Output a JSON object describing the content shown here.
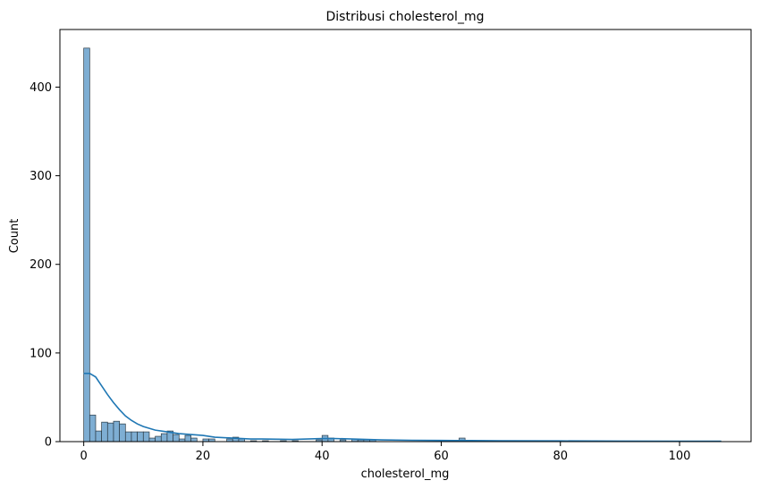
{
  "colors": {
    "bar_fill": "#7eaed3",
    "bar_edge": "#2b3a44",
    "kde_line": "#1f77b4",
    "axis": "#000000",
    "background": "#ffffff"
  },
  "chart_data": {
    "type": "bar",
    "subtype": "histogram_with_kde",
    "title": "Distribusi cholesterol_mg",
    "xlabel": "cholesterol_mg",
    "ylabel": "Count",
    "xlim": [
      -4,
      112
    ],
    "ylim": [
      0,
      465
    ],
    "xticks": [
      0,
      20,
      40,
      60,
      80,
      100
    ],
    "yticks": [
      0,
      100,
      200,
      300,
      400
    ],
    "grid": false,
    "legend": "none",
    "bin_width": 1.0,
    "bins": [
      {
        "x0": 0,
        "count": 444
      },
      {
        "x0": 1,
        "count": 30
      },
      {
        "x0": 2,
        "count": 12
      },
      {
        "x0": 3,
        "count": 22
      },
      {
        "x0": 4,
        "count": 21
      },
      {
        "x0": 5,
        "count": 23
      },
      {
        "x0": 6,
        "count": 20
      },
      {
        "x0": 7,
        "count": 11
      },
      {
        "x0": 8,
        "count": 11
      },
      {
        "x0": 9,
        "count": 11
      },
      {
        "x0": 10,
        "count": 11
      },
      {
        "x0": 11,
        "count": 4
      },
      {
        "x0": 12,
        "count": 6
      },
      {
        "x0": 13,
        "count": 9
      },
      {
        "x0": 14,
        "count": 12
      },
      {
        "x0": 15,
        "count": 8
      },
      {
        "x0": 16,
        "count": 3
      },
      {
        "x0": 17,
        "count": 7
      },
      {
        "x0": 18,
        "count": 4
      },
      {
        "x0": 20,
        "count": 3
      },
      {
        "x0": 21,
        "count": 3
      },
      {
        "x0": 24,
        "count": 3
      },
      {
        "x0": 25,
        "count": 5
      },
      {
        "x0": 26,
        "count": 3
      },
      {
        "x0": 28,
        "count": 1
      },
      {
        "x0": 30,
        "count": 1
      },
      {
        "x0": 33,
        "count": 1
      },
      {
        "x0": 35,
        "count": 1
      },
      {
        "x0": 39,
        "count": 2
      },
      {
        "x0": 40,
        "count": 7
      },
      {
        "x0": 41,
        "count": 4
      },
      {
        "x0": 43,
        "count": 2
      },
      {
        "x0": 45,
        "count": 3
      },
      {
        "x0": 46,
        "count": 2
      },
      {
        "x0": 47,
        "count": 2
      },
      {
        "x0": 48,
        "count": 2
      },
      {
        "x0": 63,
        "count": 4
      }
    ],
    "kde": {
      "x": [
        0,
        1,
        2,
        3,
        4,
        5,
        6,
        7,
        8,
        9,
        10,
        12,
        14,
        16,
        18,
        20,
        22,
        25,
        28,
        30,
        35,
        40,
        42,
        45,
        50,
        55,
        60,
        65,
        70,
        80,
        90,
        100,
        107
      ],
      "y": [
        77,
        77,
        73,
        63,
        53,
        44,
        36,
        29,
        24,
        20,
        17,
        13,
        11,
        9,
        8,
        7,
        5,
        4,
        3,
        3,
        2.5,
        3.5,
        3.5,
        3,
        2,
        1.5,
        1.3,
        1.2,
        1,
        0.8,
        0.6,
        0.4,
        0.4
      ]
    }
  }
}
